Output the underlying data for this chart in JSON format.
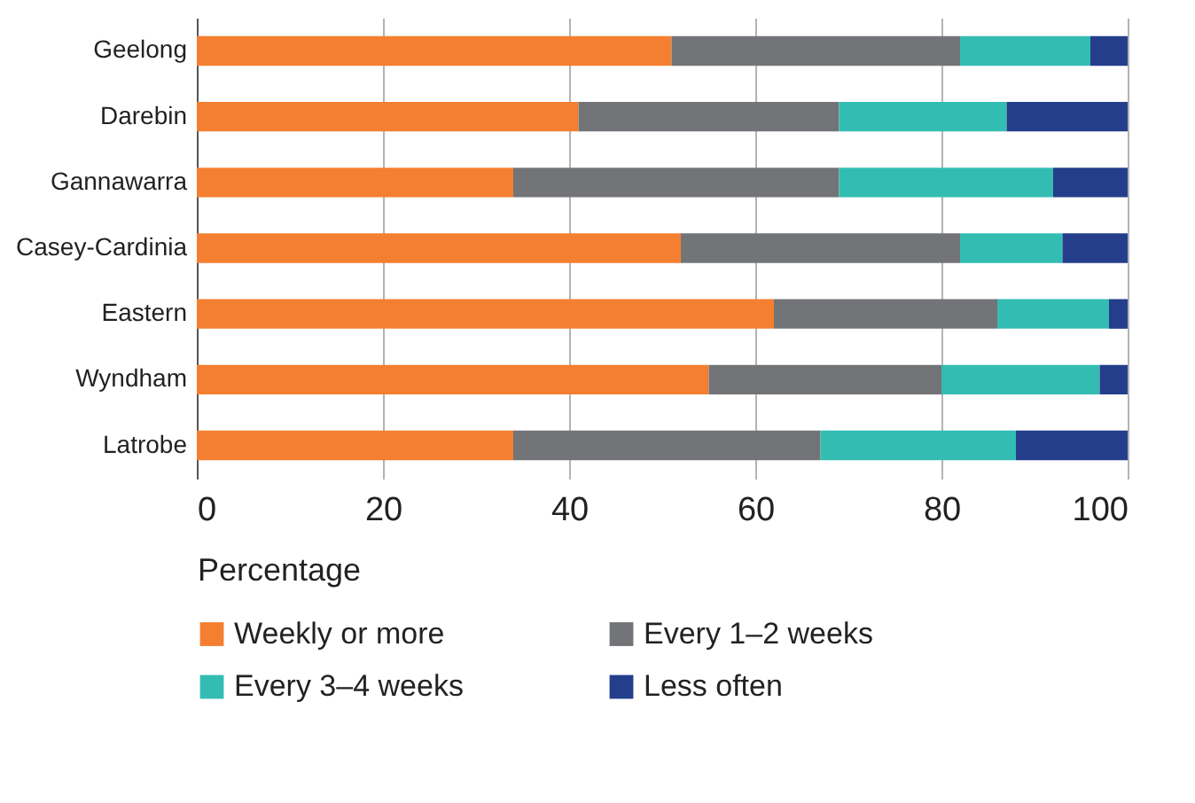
{
  "chart_data": {
    "type": "bar",
    "orientation": "horizontal",
    "stacked": true,
    "xlabel": "Percentage",
    "categories": [
      "Geelong",
      "Darebin",
      "Gannawarra",
      "Casey-Cardinia",
      "Eastern",
      "Wyndham",
      "Latrobe"
    ],
    "series": [
      {
        "name": "Weekly or more",
        "color": "#f47f30",
        "values": [
          51,
          41,
          34,
          52,
          62,
          55,
          34
        ]
      },
      {
        "name": "Every 1–2 weeks",
        "color": "#737477",
        "values": [
          31,
          28,
          35,
          30,
          24,
          25,
          33
        ]
      },
      {
        "name": "Every 3–4 weeks",
        "color": "#33bdb2",
        "values": [
          14,
          18,
          23,
          11,
          12,
          17,
          21
        ]
      },
      {
        "name": "Less often",
        "color": "#243e8c",
        "values": [
          4,
          13,
          8,
          7,
          2,
          3,
          12
        ]
      }
    ],
    "xlim": [
      0,
      100
    ],
    "xticks": [
      0,
      20,
      40,
      60,
      80,
      100
    ],
    "grid": "x",
    "legend": "bottom"
  }
}
